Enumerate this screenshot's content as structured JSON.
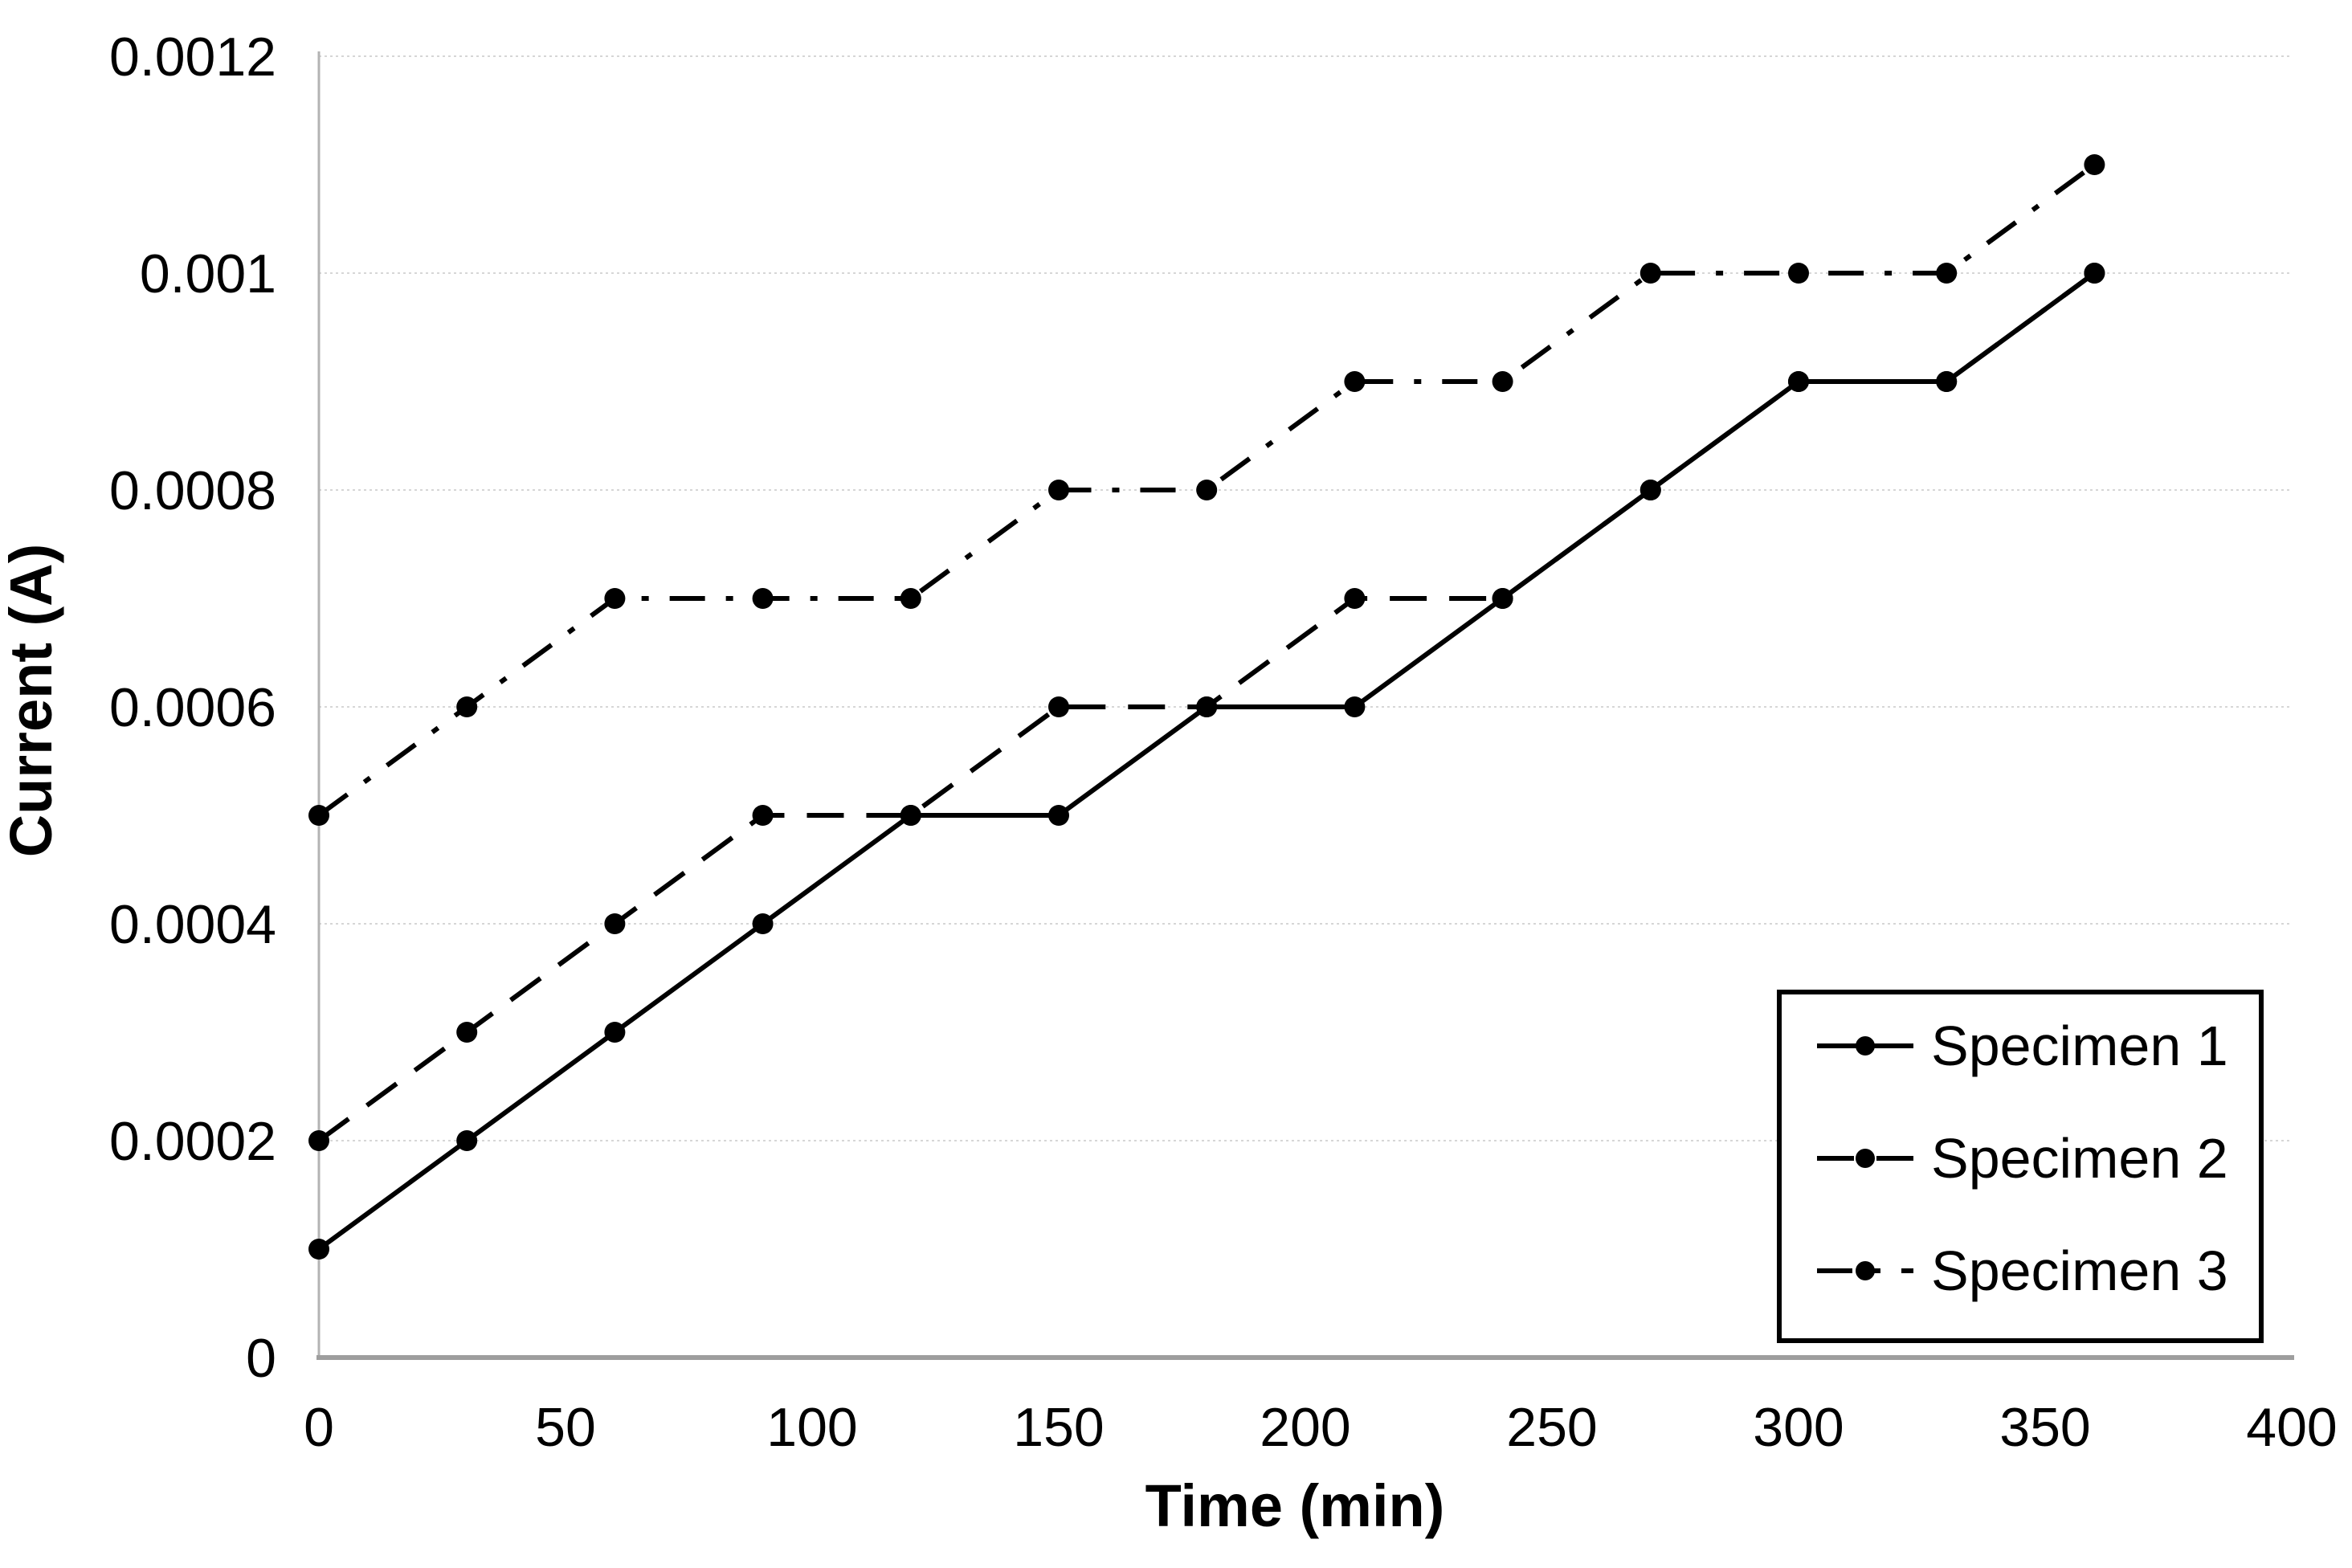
{
  "chart_data": {
    "type": "line",
    "title": "",
    "xlabel": "Time (min)",
    "ylabel": "Current (A)",
    "xlim": [
      0,
      400
    ],
    "ylim": [
      0,
      0.0012
    ],
    "grid": "horizontal-only",
    "legend_position": "inside-lower-right",
    "x": [
      0,
      30,
      60,
      90,
      120,
      150,
      180,
      210,
      240,
      270,
      300,
      330,
      360
    ],
    "series": [
      {
        "name": "Specimen 1",
        "line_style": "solid",
        "marker": "filled-circle",
        "color": "#000000",
        "values": [
          0.0001,
          0.0002,
          0.0003,
          0.0004,
          0.0005,
          0.0005,
          0.0006,
          0.0006,
          0.0007,
          0.0008,
          0.0009,
          0.0009,
          0.001
        ]
      },
      {
        "name": "Specimen 2",
        "line_style": "dashed",
        "marker": "filled-circle",
        "color": "#000000",
        "values": [
          0.0002,
          0.0003,
          0.0004,
          0.0005,
          0.0005,
          0.0006,
          0.0006,
          0.0007,
          0.0007,
          0.0008,
          0.0009,
          0.0009,
          0.001
        ]
      },
      {
        "name": "Specimen 3",
        "line_style": "dash-dot",
        "marker": "filled-circle",
        "color": "#000000",
        "values": [
          0.0005,
          0.0006,
          0.0007,
          0.0007,
          0.0007,
          0.0008,
          0.0008,
          0.0009,
          0.0009,
          0.001,
          0.001,
          0.001,
          0.0011
        ]
      }
    ],
    "x_ticks": {
      "values": [
        0,
        50,
        100,
        150,
        200,
        250,
        300,
        350,
        400
      ],
      "labels": [
        "0",
        "50",
        "100",
        "150",
        "200",
        "250",
        "300",
        "350",
        "400"
      ]
    },
    "y_ticks": {
      "values": [
        0,
        0.0002,
        0.0004,
        0.0006,
        0.0008,
        0.001,
        0.0012
      ],
      "labels": [
        "0",
        "0.0002",
        "0.0004",
        "0.0006",
        "0.0008",
        "0.001",
        "0.0012"
      ]
    }
  },
  "colors": {
    "series": "#000000",
    "gridline": "#d6d6d6",
    "y_axis": "#b3b3b3",
    "x_axis": "#9e9e9e",
    "background": "#ffffff",
    "legend_border": "#000000",
    "legend_fill": "#ffffff",
    "text": "#000000"
  }
}
